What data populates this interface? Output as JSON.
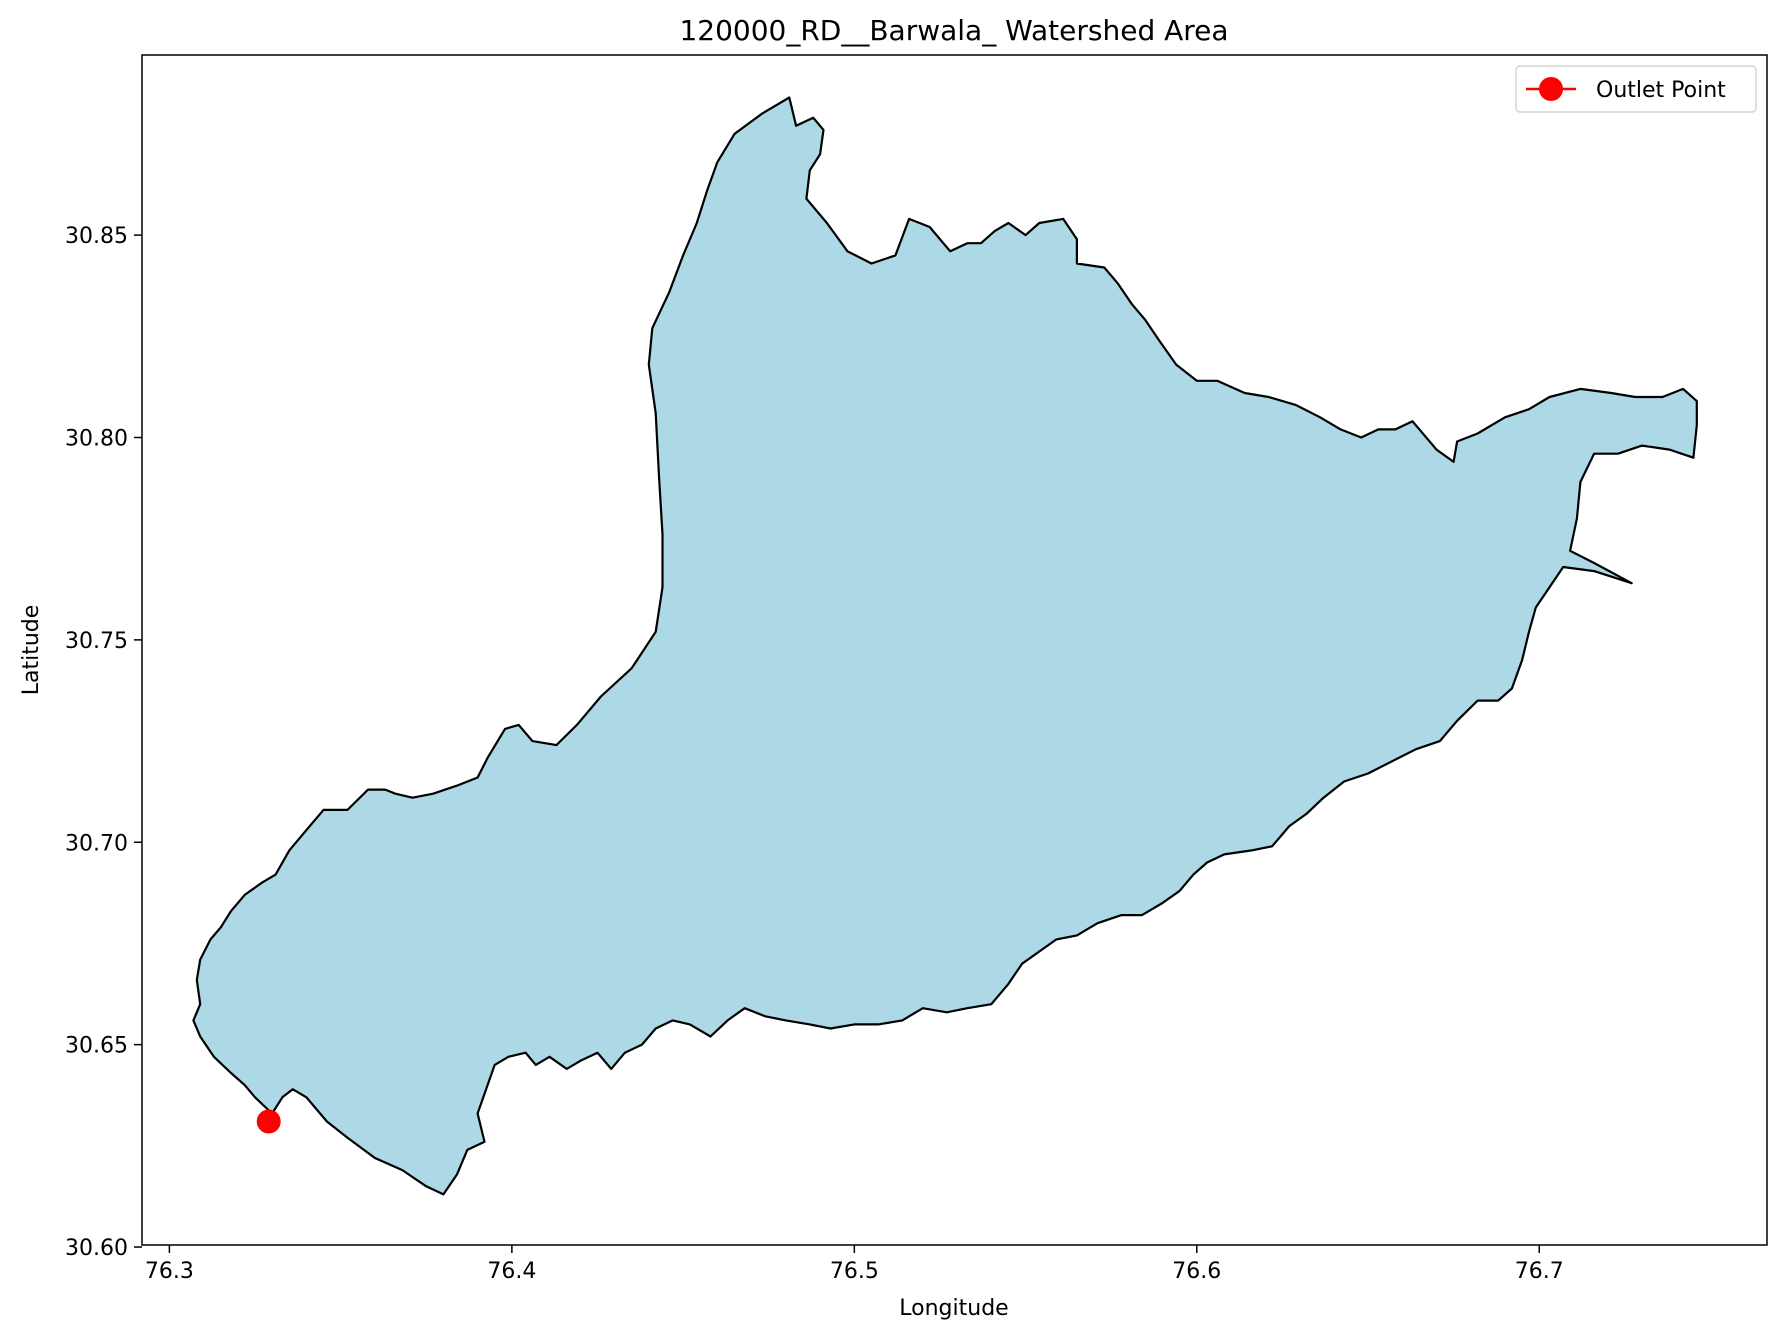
{
  "chart_data": {
    "type": "map",
    "title": "120000_RD__Barwala_ Watershed Area",
    "xlabel": "Longitude",
    "ylabel": "Latitude",
    "xlim": [
      76.292,
      76.7665
    ],
    "ylim": [
      30.6005,
      30.8945
    ],
    "x_ticks": [
      76.3,
      76.4,
      76.5,
      76.6,
      76.7
    ],
    "x_tick_labels": [
      "76.3",
      "76.4",
      "76.5",
      "76.6",
      "76.7"
    ],
    "y_ticks": [
      30.6,
      30.65,
      30.7,
      30.75,
      30.8,
      30.85
    ],
    "y_tick_labels": [
      "30.60",
      "30.65",
      "30.70",
      "30.75",
      "30.80",
      "30.85"
    ],
    "grid": false,
    "legend": {
      "position": "top-right",
      "entries": [
        {
          "label": "Outlet Point",
          "color": "#ff0000",
          "marker": "circle"
        }
      ]
    },
    "watershed": {
      "fill_color": "#add8e6",
      "edge_color": "#000000",
      "boundary": [
        [
          76.336,
          30.639
        ],
        [
          76.34,
          30.637
        ],
        [
          76.346,
          30.631
        ],
        [
          76.352,
          30.627
        ],
        [
          76.36,
          30.622
        ],
        [
          76.368,
          30.619
        ],
        [
          76.375,
          30.615
        ],
        [
          76.38,
          30.613
        ],
        [
          76.384,
          30.618
        ],
        [
          76.387,
          30.624
        ],
        [
          76.392,
          30.626
        ],
        [
          76.39,
          30.633
        ],
        [
          76.395,
          30.645
        ],
        [
          76.399,
          30.647
        ],
        [
          76.404,
          30.648
        ],
        [
          76.407,
          30.645
        ],
        [
          76.411,
          30.647
        ],
        [
          76.416,
          30.644
        ],
        [
          76.42,
          30.646
        ],
        [
          76.425,
          30.648
        ],
        [
          76.429,
          30.644
        ],
        [
          76.433,
          30.648
        ],
        [
          76.438,
          30.65
        ],
        [
          76.442,
          30.654
        ],
        [
          76.447,
          30.656
        ],
        [
          76.452,
          30.655
        ],
        [
          76.458,
          30.652
        ],
        [
          76.463,
          30.656
        ],
        [
          76.468,
          30.659
        ],
        [
          76.474,
          30.657
        ],
        [
          76.48,
          30.656
        ],
        [
          76.487,
          30.655
        ],
        [
          76.493,
          30.654
        ],
        [
          76.5,
          30.655
        ],
        [
          76.507,
          30.655
        ],
        [
          76.514,
          30.656
        ],
        [
          76.52,
          30.659
        ],
        [
          76.527,
          30.658
        ],
        [
          76.533,
          30.659
        ],
        [
          76.54,
          30.66
        ],
        [
          76.545,
          30.665
        ],
        [
          76.549,
          30.67
        ],
        [
          76.554,
          30.673
        ],
        [
          76.559,
          30.676
        ],
        [
          76.565,
          30.677
        ],
        [
          76.571,
          30.68
        ],
        [
          76.578,
          30.682
        ],
        [
          76.584,
          30.682
        ],
        [
          76.59,
          30.685
        ],
        [
          76.595,
          30.688
        ],
        [
          76.599,
          30.692
        ],
        [
          76.603,
          30.695
        ],
        [
          76.608,
          30.697
        ],
        [
          76.616,
          30.698
        ],
        [
          76.622,
          30.699
        ],
        [
          76.627,
          30.704
        ],
        [
          76.632,
          30.707
        ],
        [
          76.637,
          30.711
        ],
        [
          76.643,
          30.715
        ],
        [
          76.65,
          30.717
        ],
        [
          76.657,
          30.72
        ],
        [
          76.664,
          30.723
        ],
        [
          76.671,
          30.725
        ],
        [
          76.676,
          30.73
        ],
        [
          76.682,
          30.735
        ],
        [
          76.688,
          30.735
        ],
        [
          76.692,
          30.738
        ],
        [
          76.695,
          30.745
        ],
        [
          76.697,
          30.752
        ],
        [
          76.699,
          30.758
        ],
        [
          76.703,
          30.763
        ],
        [
          76.707,
          30.768
        ],
        [
          76.716,
          30.767
        ],
        [
          76.727,
          30.764
        ],
        [
          76.716,
          30.769
        ],
        [
          76.709,
          30.772
        ],
        [
          76.711,
          30.78
        ],
        [
          76.712,
          30.789
        ],
        [
          76.716,
          30.796
        ],
        [
          76.723,
          30.796
        ],
        [
          76.73,
          30.798
        ],
        [
          76.738,
          30.797
        ],
        [
          76.745,
          30.795
        ],
        [
          76.746,
          30.803
        ],
        [
          76.746,
          30.809
        ],
        [
          76.742,
          30.812
        ],
        [
          76.736,
          30.81
        ],
        [
          76.728,
          30.81
        ],
        [
          76.721,
          30.811
        ],
        [
          76.712,
          30.812
        ],
        [
          76.703,
          30.81
        ],
        [
          76.697,
          30.807
        ],
        [
          76.69,
          30.805
        ],
        [
          76.682,
          30.801
        ],
        [
          76.676,
          30.799
        ],
        [
          76.675,
          30.794
        ],
        [
          76.67,
          30.797
        ],
        [
          76.663,
          30.804
        ],
        [
          76.658,
          30.802
        ],
        [
          76.653,
          30.802
        ],
        [
          76.648,
          30.8
        ],
        [
          76.642,
          30.802
        ],
        [
          76.636,
          30.805
        ],
        [
          76.629,
          30.808
        ],
        [
          76.621,
          30.81
        ],
        [
          76.614,
          30.811
        ],
        [
          76.606,
          30.814
        ],
        [
          76.6,
          30.814
        ],
        [
          76.594,
          30.818
        ],
        [
          76.589,
          30.824
        ],
        [
          76.585,
          30.829
        ],
        [
          76.581,
          30.833
        ],
        [
          76.577,
          30.838
        ],
        [
          76.573,
          30.842
        ],
        [
          76.565,
          30.843
        ],
        [
          76.565,
          30.849
        ],
        [
          76.561,
          30.854
        ],
        [
          76.554,
          30.853
        ],
        [
          76.55,
          30.85
        ],
        [
          76.545,
          30.853
        ],
        [
          76.541,
          30.851
        ],
        [
          76.537,
          30.848
        ],
        [
          76.533,
          30.848
        ],
        [
          76.528,
          30.846
        ],
        [
          76.522,
          30.852
        ],
        [
          76.516,
          30.854
        ],
        [
          76.512,
          30.845
        ],
        [
          76.505,
          30.843
        ],
        [
          76.498,
          30.846
        ],
        [
          76.492,
          30.853
        ],
        [
          76.486,
          30.859
        ],
        [
          76.487,
          30.866
        ],
        [
          76.49,
          30.87
        ],
        [
          76.491,
          30.876
        ],
        [
          76.488,
          30.879
        ],
        [
          76.483,
          30.877
        ],
        [
          76.481,
          30.884
        ],
        [
          76.473,
          30.88
        ],
        [
          76.465,
          30.875
        ],
        [
          76.46,
          30.868
        ],
        [
          76.457,
          30.861
        ],
        [
          76.454,
          30.853
        ],
        [
          76.45,
          30.845
        ],
        [
          76.446,
          30.836
        ],
        [
          76.441,
          30.827
        ],
        [
          76.44,
          30.818
        ],
        [
          76.442,
          30.806
        ],
        [
          76.443,
          30.79
        ],
        [
          76.444,
          30.776
        ],
        [
          76.444,
          30.763
        ],
        [
          76.442,
          30.752
        ],
        [
          76.435,
          30.743
        ],
        [
          76.426,
          30.736
        ],
        [
          76.419,
          30.729
        ],
        [
          76.413,
          30.724
        ],
        [
          76.406,
          30.725
        ],
        [
          76.402,
          30.729
        ],
        [
          76.398,
          30.728
        ],
        [
          76.393,
          30.721
        ],
        [
          76.39,
          30.716
        ],
        [
          76.384,
          30.714
        ],
        [
          76.377,
          30.712
        ],
        [
          76.371,
          30.711
        ],
        [
          76.366,
          30.712
        ],
        [
          76.363,
          30.713
        ],
        [
          76.358,
          30.713
        ],
        [
          76.352,
          30.708
        ],
        [
          76.345,
          30.708
        ],
        [
          76.34,
          30.703
        ],
        [
          76.335,
          30.698
        ],
        [
          76.331,
          30.692
        ],
        [
          76.327,
          30.69
        ],
        [
          76.322,
          30.687
        ],
        [
          76.318,
          30.683
        ],
        [
          76.315,
          30.679
        ],
        [
          76.312,
          30.676
        ],
        [
          76.309,
          30.671
        ],
        [
          76.308,
          30.666
        ],
        [
          76.309,
          30.66
        ],
        [
          76.307,
          30.656
        ],
        [
          76.309,
          30.652
        ],
        [
          76.313,
          30.647
        ],
        [
          76.318,
          30.643
        ],
        [
          76.322,
          30.64
        ],
        [
          76.325,
          30.637
        ],
        [
          76.33,
          30.633
        ],
        [
          76.333,
          30.637
        ]
      ]
    },
    "outlet_point": {
      "lon": 76.329,
      "lat": 30.631,
      "color": "#ff0000"
    }
  }
}
